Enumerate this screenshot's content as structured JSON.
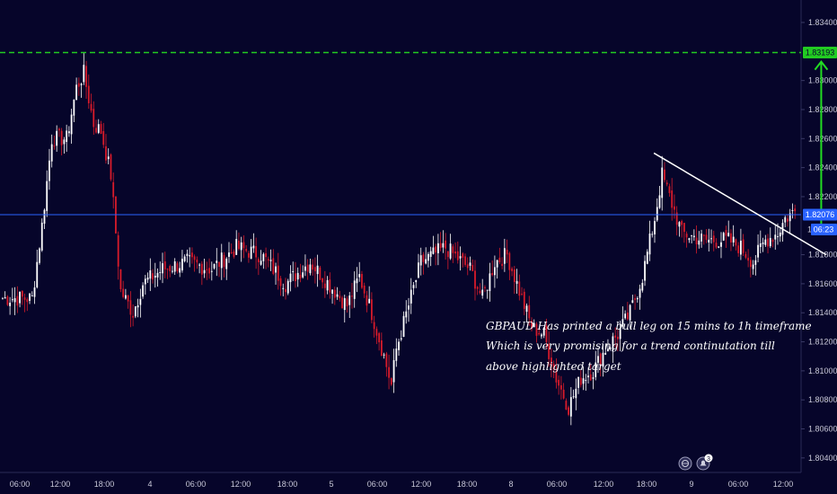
{
  "chart_data": {
    "type": "candlestick",
    "symbol": "GBPAUD",
    "y_axis": {
      "ticks": [
        1.834,
        1.832,
        1.83,
        1.828,
        1.826,
        1.824,
        1.822,
        1.82,
        1.818,
        1.816,
        1.814,
        1.812,
        1.81,
        1.808,
        1.806,
        1.804
      ],
      "tick_labels": [
        "1.83400",
        "",
        "1.83000",
        "1.82800",
        "1.82600",
        "1.82400",
        "1.82200",
        "",
        "1.81800",
        "1.81600",
        "1.81400",
        "1.81200",
        "1.81000",
        "1.80800",
        "1.80600",
        "1.80400"
      ],
      "range": [
        1.803,
        1.8353
      ]
    },
    "x_axis": {
      "tick_labels": [
        "06:00",
        "12:00",
        "18:00",
        "4",
        "06:00",
        "12:00",
        "18:00",
        "5",
        "06:00",
        "12:00",
        "18:00",
        "8",
        "06:00",
        "12:00",
        "18:00",
        "9",
        "06:00",
        "12:00"
      ]
    },
    "target_price": 1.83193,
    "target_label": "1.83193",
    "current_price": 1.82076,
    "current_label": "1.82076",
    "countdown": "06:23",
    "current_partial_label": "1.",
    "trendline": {
      "start": {
        "bar": 265,
        "price": 1.825
      },
      "end": {
        "bar": 335,
        "price": 1.818
      }
    },
    "target_arrow": {
      "bar": 333,
      "from_price": 1.8195,
      "to_price": 1.8313
    },
    "candle_series": {
      "waypoints": [
        [
          0,
          1.815
        ],
        [
          12,
          1.815
        ],
        [
          16,
          1.82
        ],
        [
          20,
          1.826
        ],
        [
          26,
          1.826
        ],
        [
          30,
          1.8295
        ],
        [
          33,
          1.8305
        ],
        [
          37,
          1.827
        ],
        [
          40,
          1.8265
        ],
        [
          44,
          1.8235
        ],
        [
          48,
          1.8155
        ],
        [
          53,
          1.814
        ],
        [
          57,
          1.816
        ],
        [
          65,
          1.817
        ],
        [
          75,
          1.8175
        ],
        [
          85,
          1.817
        ],
        [
          95,
          1.8185
        ],
        [
          105,
          1.818
        ],
        [
          115,
          1.816
        ],
        [
          125,
          1.8175
        ],
        [
          135,
          1.8155
        ],
        [
          140,
          1.8145
        ],
        [
          145,
          1.8165
        ],
        [
          150,
          1.814
        ],
        [
          155,
          1.811
        ],
        [
          158,
          1.809
        ],
        [
          160,
          1.8115
        ],
        [
          170,
          1.8175
        ],
        [
          180,
          1.8185
        ],
        [
          190,
          1.817
        ],
        [
          195,
          1.815
        ],
        [
          200,
          1.8175
        ],
        [
          205,
          1.818
        ],
        [
          210,
          1.8155
        ],
        [
          215,
          1.813
        ],
        [
          220,
          1.8125
        ],
        [
          225,
          1.8095
        ],
        [
          230,
          1.8075
        ],
        [
          235,
          1.8095
        ],
        [
          240,
          1.81
        ],
        [
          245,
          1.8115
        ],
        [
          250,
          1.8125
        ],
        [
          255,
          1.814
        ],
        [
          260,
          1.8165
        ],
        [
          265,
          1.8205
        ],
        [
          268,
          1.8235
        ],
        [
          272,
          1.8215
        ],
        [
          276,
          1.8195
        ],
        [
          285,
          1.819
        ],
        [
          295,
          1.819
        ],
        [
          300,
          1.8185
        ],
        [
          305,
          1.8175
        ],
        [
          310,
          1.819
        ],
        [
          315,
          1.8195
        ],
        [
          318,
          1.8205
        ],
        [
          322,
          1.821
        ]
      ],
      "note": "close-price path through the candles, bar index vs price"
    }
  },
  "annotation": {
    "line1": "GBPAUD Has printed a bull leg on 15 mins to 1h timeframe",
    "line2": "Which is very promising for a trend continutation till",
    "line3": "above highlighted target"
  },
  "badges": {
    "icon1": "globe-icon",
    "icon2": "alert-icon",
    "alert_count": "3"
  },
  "colors": {
    "background": "#06052a",
    "bull_candle": "#ffffff",
    "bear_candle": "#d81b2a",
    "target_line": "#22cc22",
    "target_label_bg": "#22cc22",
    "current_line": "#2962ff",
    "current_label_bg": "#2962ff",
    "trendline": "#ffffff",
    "arrow": "#22dd22"
  }
}
